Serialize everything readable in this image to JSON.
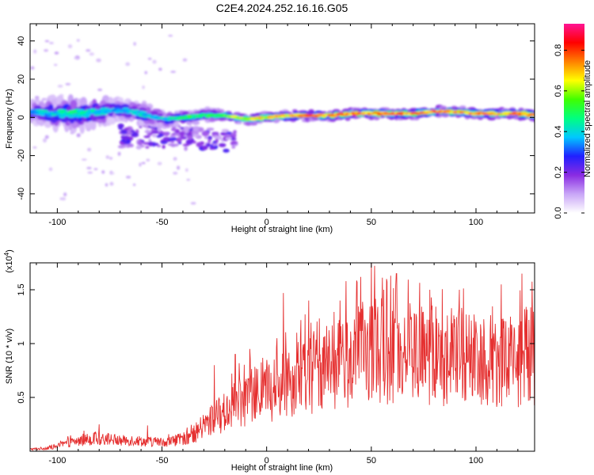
{
  "title": "C2E4.2024.252.16.16.G05",
  "chart_data": [
    {
      "type": "heatmap",
      "xlabel": "Height of straight line (km)",
      "ylabel": "Frequency (Hz)",
      "xlim": [
        -113,
        128
      ],
      "ylim": [
        -50,
        49
      ],
      "xticks": [
        -100,
        -50,
        0,
        50,
        100
      ],
      "yticks": [
        -40,
        -20,
        0,
        20,
        40
      ],
      "colorbar": {
        "label": "Normalized spectral amplitude",
        "range": [
          0,
          0.93
        ],
        "ticks": [
          0.0,
          0.2,
          0.4,
          0.6,
          0.8
        ],
        "colors": [
          "#ffffff",
          "#c9a6f7",
          "#8a2be2",
          "#2020ff",
          "#00c8ff",
          "#00ff80",
          "#40ff00",
          "#ffff00",
          "#ff8000",
          "#ff0000",
          "#ff1493"
        ]
      },
      "ridge": {
        "x": [
          -113,
          -100,
          -90,
          -80,
          -70,
          -60,
          -50,
          -40,
          -30,
          -20,
          -10,
          0,
          10,
          20,
          30,
          40,
          50,
          60,
          70,
          80,
          90,
          100,
          110,
          120,
          128
        ],
        "center_hz": [
          3,
          2,
          2,
          3,
          4,
          2,
          -1,
          0,
          1,
          1,
          -1,
          0,
          1,
          1,
          1,
          2,
          2,
          2,
          2,
          3,
          3,
          2,
          2,
          2,
          1
        ],
        "halfwidth_hz": [
          6,
          9,
          9,
          8,
          6,
          6,
          5,
          4,
          4,
          3,
          3,
          3,
          3,
          3,
          3,
          3,
          3,
          3,
          3,
          3,
          3,
          3,
          3,
          3,
          3
        ],
        "peak_amplitude": [
          0.4,
          0.45,
          0.5,
          0.45,
          0.4,
          0.45,
          0.45,
          0.55,
          0.55,
          0.6,
          0.7,
          0.75,
          0.8,
          0.85,
          0.8,
          0.85,
          0.85,
          0.8,
          0.9,
          0.85,
          0.8,
          0.85,
          0.8,
          0.85,
          0.8
        ]
      }
    },
    {
      "type": "line",
      "xlabel": "Height of straight line (km)",
      "ylabel": "SNR (10 * v/v)",
      "yscale_label": "(x10",
      "yscale_exp": "4",
      "xlim": [
        -113,
        128
      ],
      "ylim": [
        0,
        1.75
      ],
      "xticks": [
        -100,
        -50,
        0,
        50,
        100
      ],
      "yticks": [
        0.5,
        1.0,
        1.5
      ],
      "line_color": "#e53030",
      "series": [
        {
          "x": [
            -113,
            -105,
            -100,
            -95,
            -90,
            -85,
            -80,
            -75,
            -70,
            -65,
            -60,
            -55,
            -50,
            -45,
            -40,
            -35,
            -30,
            -25,
            -20,
            -15,
            -10,
            -5,
            0,
            5,
            10,
            15,
            20,
            25,
            30,
            35,
            40,
            45,
            50,
            55,
            60,
            65,
            70,
            75,
            80,
            85,
            90,
            95,
            100,
            105,
            110,
            115,
            120,
            125,
            128
          ],
          "values": [
            0.02,
            0.03,
            0.05,
            0.08,
            0.1,
            0.12,
            0.12,
            0.12,
            0.1,
            0.11,
            0.1,
            0.09,
            0.09,
            0.1,
            0.12,
            0.16,
            0.25,
            0.32,
            0.38,
            0.45,
            0.5,
            0.55,
            0.6,
            0.62,
            0.68,
            0.72,
            0.75,
            0.8,
            0.82,
            0.85,
            0.9,
            0.95,
            1.0,
            0.98,
            0.95,
            1.0,
            0.95,
            0.92,
            0.95,
            0.9,
            0.95,
            0.92,
            0.95,
            0.9,
            0.9,
            0.92,
            0.9,
            0.95,
            0.92
          ],
          "peaks": [
            [
              -95,
              0.14
            ],
            [
              -80,
              0.25
            ],
            [
              -57,
              0.24
            ],
            [
              -38,
              0.22
            ],
            [
              -25,
              0.8
            ],
            [
              -15,
              0.9
            ],
            [
              -8,
              0.95
            ],
            [
              5,
              1.05
            ],
            [
              8,
              1.47
            ],
            [
              20,
              1.4
            ],
            [
              35,
              1.4
            ],
            [
              38,
              1.58
            ],
            [
              45,
              1.62
            ],
            [
              50,
              1.75
            ],
            [
              56,
              1.5
            ],
            [
              62,
              1.65
            ],
            [
              78,
              1.5
            ],
            [
              92,
              1.5
            ],
            [
              112,
              1.55
            ],
            [
              122,
              1.65
            ]
          ]
        }
      ]
    }
  ]
}
